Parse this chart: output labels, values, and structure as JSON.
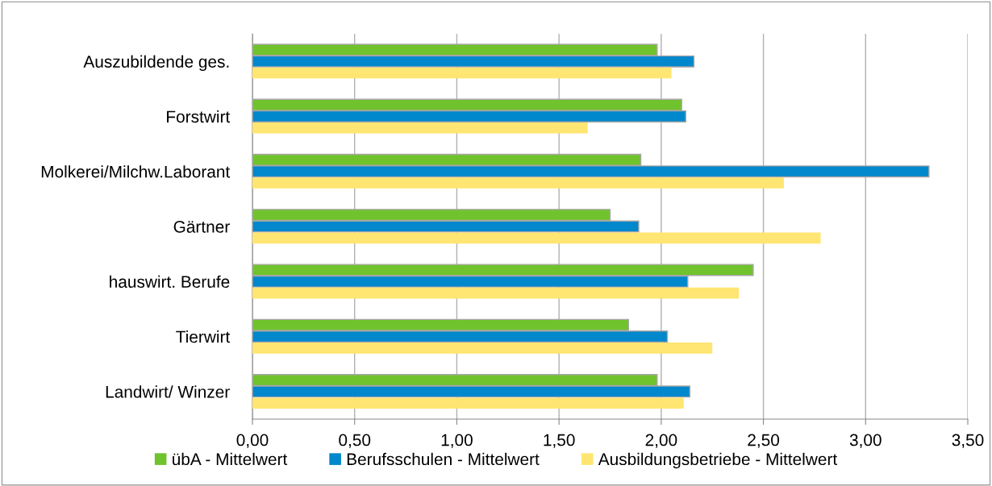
{
  "chart_data": {
    "type": "bar",
    "orientation": "horizontal",
    "categories": [
      "Auszubildende ges.",
      "Forstwirt",
      "Molkerei/Milchw.Laborant",
      "Gärtner",
      "hauswirt. Berufe",
      "Tierwirt",
      "Landwirt/ Winzer"
    ],
    "series": [
      {
        "name": "übA - Mittelwert",
        "color": "#70c32c",
        "values": [
          1.98,
          2.1,
          1.9,
          1.75,
          2.45,
          1.84,
          1.98
        ]
      },
      {
        "name": "Berufsschulen - Mittelwert",
        "color": "#0087cc",
        "values": [
          2.16,
          2.12,
          3.31,
          1.89,
          2.13,
          2.03,
          2.14
        ]
      },
      {
        "name": "Ausbildungsbetriebe - Mittelwert",
        "color": "#ffe571",
        "values": [
          2.05,
          1.64,
          2.6,
          2.78,
          2.38,
          2.25,
          2.11
        ]
      }
    ],
    "xlim": [
      0,
      3.5
    ],
    "xticks": [
      {
        "value": 0,
        "label": "0,00"
      },
      {
        "value": 0.5,
        "label": "0,50"
      },
      {
        "value": 1.0,
        "label": "1,00"
      },
      {
        "value": 1.5,
        "label": "1,50"
      },
      {
        "value": 2.0,
        "label": "2,00"
      },
      {
        "value": 2.5,
        "label": "2,50"
      },
      {
        "value": 3.0,
        "label": "3,00"
      },
      {
        "value": 3.5,
        "label": "3,50"
      }
    ],
    "grid": "x",
    "legend": "bottom"
  }
}
